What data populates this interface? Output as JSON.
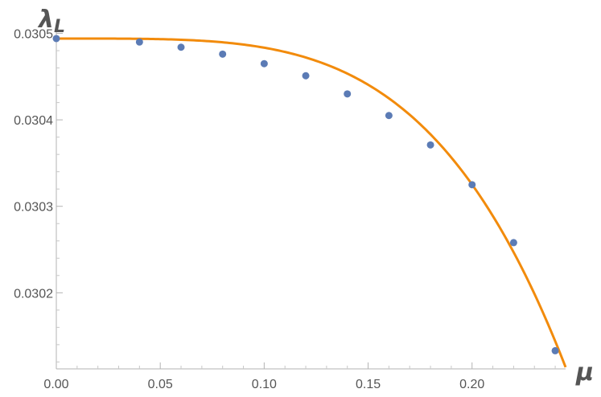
{
  "chart_data": {
    "type": "scatter",
    "title": "",
    "xlabel": "μ",
    "ylabel": "λ",
    "ylabel_subscript": "L",
    "xlim": [
      0.0,
      0.245
    ],
    "ylim": [
      0.030112,
      0.030507
    ],
    "grid": false,
    "legend": "none",
    "x_ticks": [
      0.0,
      0.05,
      0.1,
      0.15,
      0.2
    ],
    "x_tick_labels": [
      "0.00",
      "0.05",
      "0.10",
      "0.15",
      "0.20"
    ],
    "y_ticks": [
      0.0302,
      0.0303,
      0.0304,
      0.0305
    ],
    "y_tick_labels": [
      "0.0302",
      "0.0303",
      "0.0304",
      "0.0305"
    ],
    "series": [
      {
        "kind": "points",
        "color": "#5b7bb5",
        "x": [
          0.0,
          0.04,
          0.06,
          0.08,
          0.1,
          0.12,
          0.14,
          0.16,
          0.18,
          0.2,
          0.22,
          0.24
        ],
        "y": [
          0.030494,
          0.03049,
          0.030484,
          0.030476,
          0.030465,
          0.030451,
          0.03043,
          0.030405,
          0.030371,
          0.030325,
          0.030258,
          0.030133
        ]
      },
      {
        "kind": "fit-curve",
        "color": "#f28b0c",
        "model": "a - b*x^4",
        "a": 0.030494,
        "b": 0.1055,
        "x_range": [
          0.0,
          0.245
        ]
      }
    ]
  }
}
